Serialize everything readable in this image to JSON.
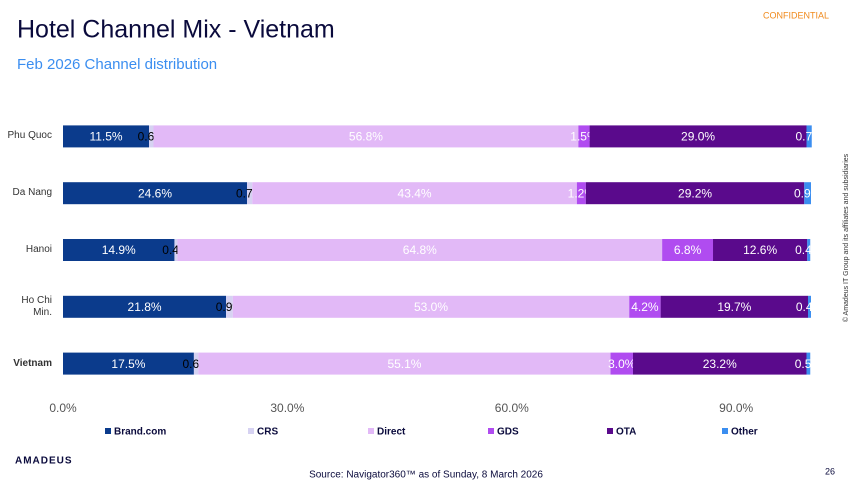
{
  "header": {
    "title": "Hotel Channel Mix - Vietnam",
    "subtitle": "Feb 2026 Channel distribution",
    "confidential": "CONFIDENTIAL"
  },
  "footer": {
    "logo": "AMADEUS",
    "source": "Source: Navigator360™ as of Sunday, 8 March 2026",
    "page": "26",
    "copyright": "© Amadeus IT Group and its affiliates and subsidiaries"
  },
  "chart_data": {
    "type": "stacked_barh",
    "categories": [
      "Phu Quoc",
      "Da Nang",
      "Hanoi",
      "Ho Chi Min.",
      "Vietnam"
    ],
    "series": [
      {
        "name": "Brand.com",
        "color": "#0b3b8c",
        "values": [
          11.5,
          24.6,
          14.9,
          21.8,
          17.5
        ],
        "value_labels": [
          "11.5%",
          "24.6%",
          "14.9%",
          "21.8%",
          "17.5%"
        ]
      },
      {
        "name": "CRS",
        "color": "#d6d2f2",
        "values": [
          0.6,
          0.7,
          0.4,
          0.9,
          0.6
        ],
        "value_labels": [
          "0.6%",
          "0.7%",
          "0.4%",
          "0.9%",
          "0.6%"
        ]
      },
      {
        "name": "Direct",
        "color": "#e2b9f7",
        "values": [
          56.8,
          43.4,
          64.8,
          53.0,
          55.1
        ],
        "value_labels": [
          "56.8%",
          "43.4%",
          "64.8%",
          "53.0%",
          "55.1%"
        ]
      },
      {
        "name": "GDS",
        "color": "#b04cf0",
        "values": [
          1.5,
          1.2,
          6.8,
          4.2,
          3.0
        ],
        "value_labels": [
          "1.5%",
          "1.2%",
          "6.8%",
          "4.2%",
          "3.0%"
        ]
      },
      {
        "name": "OTA",
        "color": "#5a0a8c",
        "values": [
          29.0,
          29.2,
          12.6,
          19.7,
          23.2
        ],
        "value_labels": [
          "29.0%",
          "29.2%",
          "12.6%",
          "19.7%",
          "23.2%"
        ]
      },
      {
        "name": "Other",
        "color": "#3b8ef0",
        "values": [
          0.7,
          0.9,
          0.4,
          0.4,
          0.5
        ],
        "value_labels": [
          "0.7%",
          "0.9%",
          "0.4%",
          "0.4%",
          "0.5%"
        ]
      }
    ],
    "xlim": [
      0,
      100
    ],
    "xticks": [
      {
        "value": 0,
        "label": "0.0%"
      },
      {
        "value": 30,
        "label": "30.0%"
      },
      {
        "value": 60,
        "label": "60.0%"
      },
      {
        "value": 90,
        "label": "90.0%"
      }
    ]
  }
}
